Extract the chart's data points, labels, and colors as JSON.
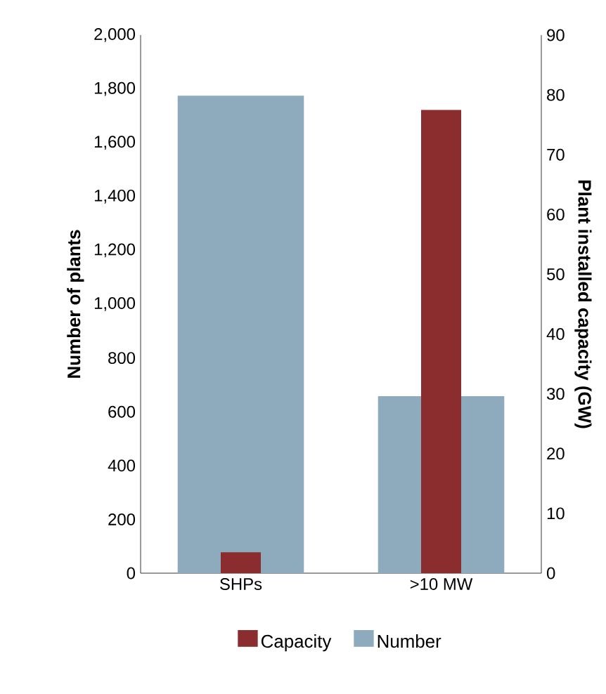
{
  "chart_data": {
    "type": "bar",
    "categories": [
      "SHPs",
      ">10 MW"
    ],
    "series": [
      {
        "name": "Capacity",
        "color": "#8b2c2e",
        "values": [
          3.5,
          77.5
        ],
        "axis": "y2"
      },
      {
        "name": "Number",
        "color": "#8eaabd",
        "values": [
          1775,
          658
        ]
      }
    ],
    "ylabel": "Number of plants",
    "y2label": "Plant installed capacity (GW)",
    "ylim": [
      0,
      2000
    ],
    "yticks": [
      0,
      200,
      400,
      600,
      800,
      {
        "value": 1000,
        "label": "1,000"
      },
      {
        "value": 1200,
        "label": "1,200"
      },
      {
        "value": 1400,
        "label": "1,400"
      },
      {
        "value": 1600,
        "label": "1,600"
      },
      {
        "value": 1800,
        "label": "1,800"
      },
      {
        "value": 2000,
        "label": "2,000"
      }
    ],
    "y2lim": [
      0,
      90
    ],
    "y2ticks": [
      0,
      10,
      20,
      30,
      40,
      50,
      60,
      70,
      80,
      90
    ],
    "legend": "bottom",
    "grid": false
  }
}
